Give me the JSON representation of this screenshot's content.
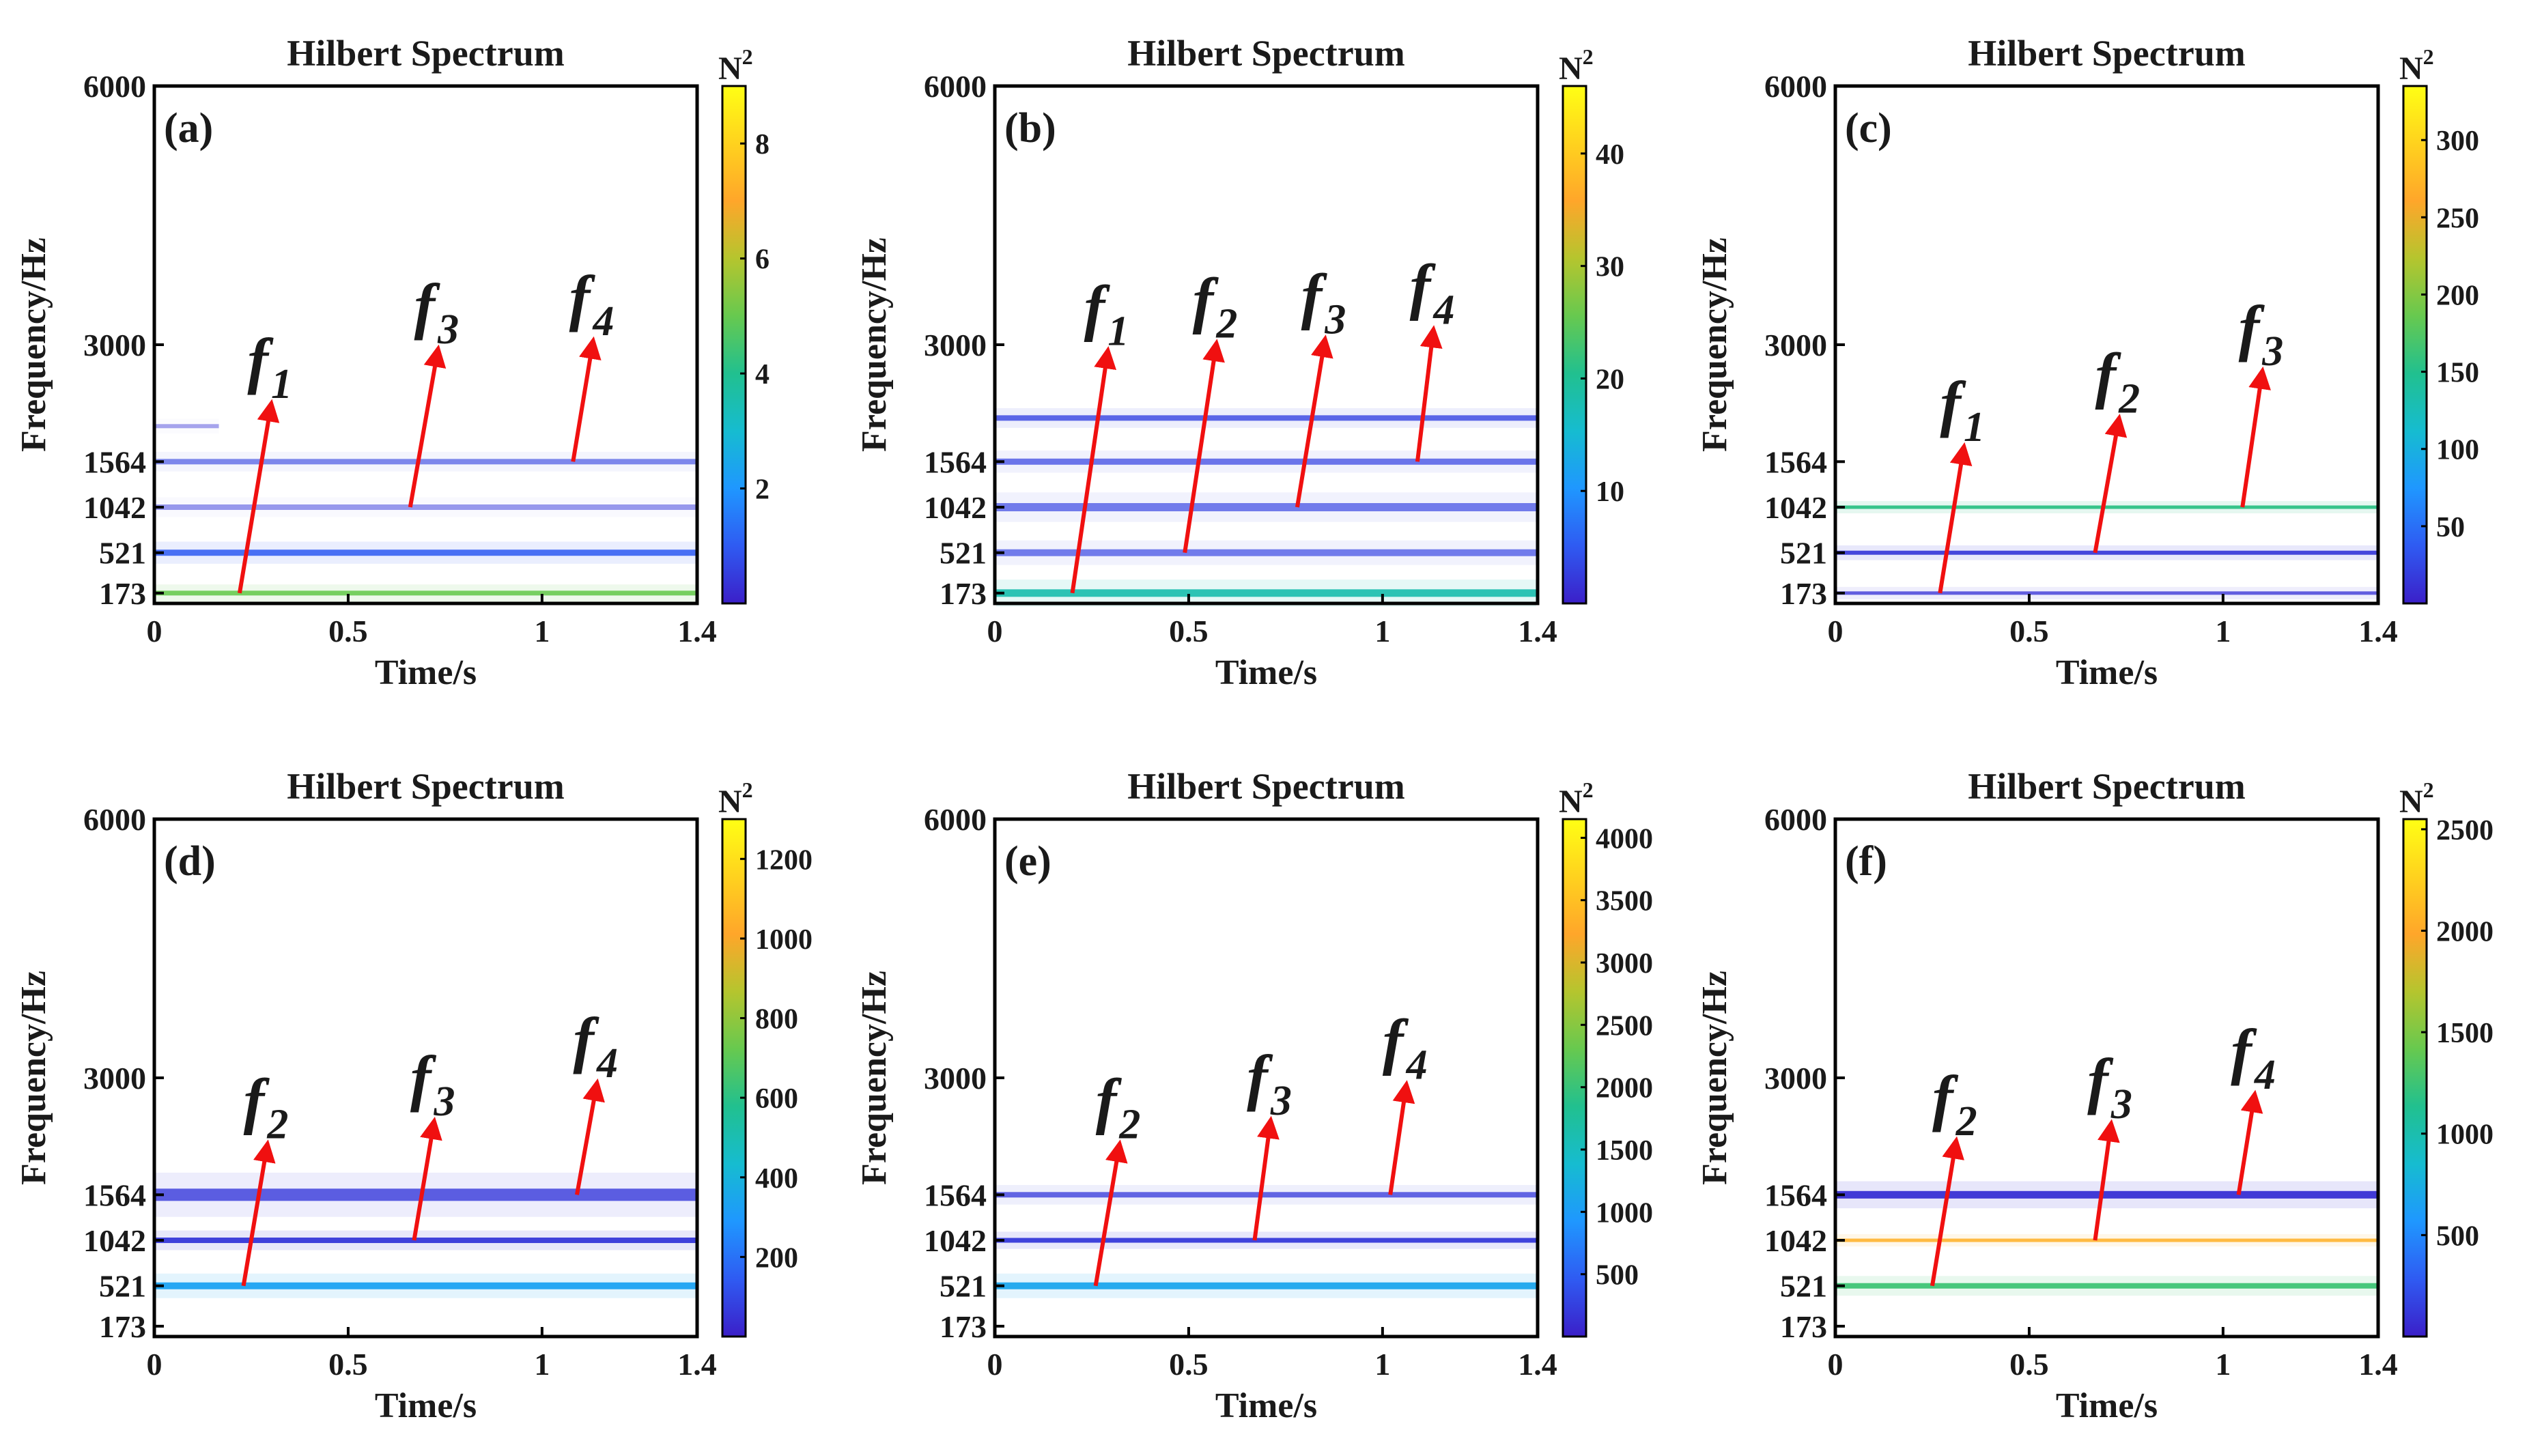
{
  "figure": {
    "colorbar_label": "N",
    "colorbar_label_sup": "2",
    "colormap": [
      "#3b1fc8",
      "#2f5bf2",
      "#1f97ff",
      "#16bcd0",
      "#21c08f",
      "#67c94f",
      "#b5c52e",
      "#ffa62a",
      "#ffd21e",
      "#ffff14"
    ]
  },
  "chart_data": [
    {
      "type": "heatmap",
      "panel_label": "(a)",
      "title": "Hilbert Spectrum",
      "xlabel": "Time/s",
      "ylabel": "Frequency/Hz",
      "xlim": [
        0,
        1.4
      ],
      "xticks": [
        0,
        0.5,
        1,
        1.4
      ],
      "xtick_labels": [
        "0",
        "0.5",
        "1",
        "1.4"
      ],
      "yticks": [
        173,
        521,
        1042,
        1564,
        3000,
        6000
      ],
      "ytick_labels": [
        "173",
        "521",
        "1042",
        "1564",
        "3000",
        "6000"
      ],
      "colorbar": {
        "ticks": [
          2,
          4,
          6,
          8
        ],
        "labels": [
          "2",
          "4",
          "6",
          "8"
        ],
        "range": [
          0,
          9
        ]
      },
      "bands": [
        {
          "freq": 173,
          "value": 5,
          "intensity": 0.9,
          "width": 7
        },
        {
          "freq": 521,
          "value": 1,
          "intensity": 0.85,
          "width": 9
        },
        {
          "freq": 1042,
          "value": 0.4,
          "intensity": 0.25,
          "width": 8
        },
        {
          "freq": 1564,
          "value": 0.6,
          "intensity": 0.45,
          "width": 8
        },
        {
          "freq": 2000,
          "value": 0.3,
          "intensity": 0.15,
          "width": 6,
          "x_end": 0.17
        }
      ],
      "annotations": [
        {
          "symbol": "f",
          "subscript": "1",
          "from": [
            0.22,
            173
          ],
          "to": [
            0.3,
            2230
          ]
        },
        {
          "symbol": "f",
          "subscript": "3",
          "from": [
            0.66,
            1042
          ],
          "to": [
            0.73,
            2900
          ]
        },
        {
          "symbol": "f",
          "subscript": "4",
          "from": [
            1.08,
            1564
          ],
          "to": [
            1.13,
            3000
          ]
        }
      ]
    },
    {
      "type": "heatmap",
      "panel_label": "(b)",
      "title": "Hilbert Spectrum",
      "xlabel": "Time/s",
      "ylabel": "Frequency/Hz",
      "xlim": [
        0,
        1.4
      ],
      "xticks": [
        0,
        0.5,
        1,
        1.4
      ],
      "xtick_labels": [
        "0",
        "0.5",
        "1",
        "1.4"
      ],
      "yticks": [
        173,
        521,
        1042,
        1564,
        3000,
        6000
      ],
      "ytick_labels": [
        "173",
        "521",
        "1042",
        "1564",
        "3000",
        "6000"
      ],
      "colorbar": {
        "ticks": [
          10,
          20,
          30,
          40
        ],
        "labels": [
          "10",
          "20",
          "30",
          "40"
        ],
        "range": [
          0,
          46
        ]
      },
      "bands": [
        {
          "freq": 173,
          "value": 18,
          "intensity": 0.95,
          "width": 11
        },
        {
          "freq": 521,
          "value": 3,
          "intensity": 0.55,
          "width": 10
        },
        {
          "freq": 1042,
          "value": 3,
          "intensity": 0.55,
          "width": 12
        },
        {
          "freq": 1564,
          "value": 3,
          "intensity": 0.6,
          "width": 9
        },
        {
          "freq": 2100,
          "value": 3,
          "intensity": 0.75,
          "width": 8
        }
      ],
      "annotations": [
        {
          "symbol": "f",
          "subscript": "1",
          "from": [
            0.2,
            173
          ],
          "to": [
            0.29,
            2880
          ]
        },
        {
          "symbol": "f",
          "subscript": "2",
          "from": [
            0.49,
            521
          ],
          "to": [
            0.57,
            2970
          ]
        },
        {
          "symbol": "f",
          "subscript": "3",
          "from": [
            0.78,
            1042
          ],
          "to": [
            0.85,
            3020
          ]
        },
        {
          "symbol": "f",
          "subscript": "4",
          "from": [
            1.09,
            1564
          ],
          "to": [
            1.13,
            3130
          ]
        }
      ]
    },
    {
      "type": "heatmap",
      "panel_label": "(c)",
      "title": "Hilbert Spectrum",
      "xlabel": "Time/s",
      "ylabel": "Frequency/Hz",
      "xlim": [
        0,
        1.4
      ],
      "xticks": [
        0,
        0.5,
        1,
        1.4
      ],
      "xtick_labels": [
        "0",
        "0.5",
        "1",
        "1.4"
      ],
      "yticks": [
        173,
        521,
        1042,
        1564,
        3000,
        6000
      ],
      "ytick_labels": [
        "173",
        "521",
        "1042",
        "1564",
        "3000",
        "6000"
      ],
      "colorbar": {
        "ticks": [
          50,
          100,
          150,
          200,
          250,
          300
        ],
        "labels": [
          "50",
          "100",
          "150",
          "200",
          "250",
          "300"
        ],
        "range": [
          0,
          335
        ]
      },
      "bands": [
        {
          "freq": 173,
          "value": 12,
          "intensity": 0.7,
          "width": 5
        },
        {
          "freq": 521,
          "value": 15,
          "intensity": 0.95,
          "width": 6
        },
        {
          "freq": 1042,
          "value": 155,
          "intensity": 1,
          "width": 5
        }
      ],
      "annotations": [
        {
          "symbol": "f",
          "subscript": "1",
          "from": [
            0.27,
            173
          ],
          "to": [
            0.33,
            1700
          ]
        },
        {
          "symbol": "f",
          "subscript": "2",
          "from": [
            0.67,
            521
          ],
          "to": [
            0.73,
            2050
          ]
        },
        {
          "symbol": "f",
          "subscript": "3",
          "from": [
            1.05,
            1042
          ],
          "to": [
            1.1,
            2630
          ]
        }
      ]
    },
    {
      "type": "heatmap",
      "panel_label": "(d)",
      "title": "Hilbert Spectrum",
      "xlabel": "Time/s",
      "ylabel": "Frequency/Hz",
      "xlim": [
        0,
        1.4
      ],
      "xticks": [
        0,
        0.5,
        1,
        1.4
      ],
      "xtick_labels": [
        "0",
        "0.5",
        "1",
        "1.4"
      ],
      "yticks": [
        173,
        521,
        1042,
        1564,
        3000,
        6000
      ],
      "ytick_labels": [
        "173",
        "521",
        "1042",
        "1564",
        "3000",
        "6000"
      ],
      "colorbar": {
        "ticks": [
          200,
          400,
          600,
          800,
          1000,
          1200
        ],
        "labels": [
          "200",
          "400",
          "600",
          "800",
          "1000",
          "1200"
        ],
        "range": [
          0,
          1300
        ]
      },
      "bands": [
        {
          "freq": 521,
          "value": 330,
          "intensity": 1,
          "width": 10
        },
        {
          "freq": 1042,
          "value": 60,
          "intensity": 1,
          "width": 8
        },
        {
          "freq": 1564,
          "value": 60,
          "intensity": 0.75,
          "width": 18
        }
      ],
      "annotations": [
        {
          "symbol": "f",
          "subscript": "2",
          "from": [
            0.23,
            521
          ],
          "to": [
            0.29,
            2140
          ]
        },
        {
          "symbol": "f",
          "subscript": "3",
          "from": [
            0.67,
            1042
          ],
          "to": [
            0.72,
            2420
          ]
        },
        {
          "symbol": "f",
          "subscript": "4",
          "from": [
            1.09,
            1564
          ],
          "to": [
            1.14,
            2890
          ]
        }
      ]
    },
    {
      "type": "heatmap",
      "panel_label": "(e)",
      "title": "Hilbert Spectrum",
      "xlabel": "Time/s",
      "ylabel": "Frequency/Hz",
      "xlim": [
        0,
        1.4
      ],
      "xticks": [
        0,
        0.5,
        1,
        1.4
      ],
      "xtick_labels": [
        "0",
        "0.5",
        "1",
        "1.4"
      ],
      "yticks": [
        173,
        521,
        1042,
        1564,
        3000,
        6000
      ],
      "ytick_labels": [
        "173",
        "521",
        "1042",
        "1564",
        "3000",
        "6000"
      ],
      "colorbar": {
        "ticks": [
          500,
          1000,
          1500,
          2000,
          2500,
          3000,
          3500,
          4000
        ],
        "labels": [
          "500",
          "1000",
          "1500",
          "2000",
          "2500",
          "3000",
          "3500",
          "4000"
        ],
        "range": [
          0,
          4150
        ]
      },
      "bands": [
        {
          "freq": 521,
          "value": 1100,
          "intensity": 1,
          "width": 10
        },
        {
          "freq": 1042,
          "value": 200,
          "intensity": 1,
          "width": 7
        },
        {
          "freq": 1564,
          "value": 200,
          "intensity": 0.7,
          "width": 8
        }
      ],
      "annotations": [
        {
          "symbol": "f",
          "subscript": "2",
          "from": [
            0.26,
            521
          ],
          "to": [
            0.32,
            2140
          ]
        },
        {
          "symbol": "f",
          "subscript": "3",
          "from": [
            0.67,
            1042
          ],
          "to": [
            0.71,
            2430
          ]
        },
        {
          "symbol": "f",
          "subscript": "4",
          "from": [
            1.02,
            1564
          ],
          "to": [
            1.06,
            2870
          ]
        }
      ]
    },
    {
      "type": "heatmap",
      "panel_label": "(f)",
      "title": "Hilbert Spectrum",
      "xlabel": "Time/s",
      "ylabel": "Frequency/Hz",
      "xlim": [
        0,
        1.4
      ],
      "xticks": [
        0,
        0.5,
        1,
        1.4
      ],
      "xtick_labels": [
        "0",
        "0.5",
        "1",
        "1.4"
      ],
      "yticks": [
        173,
        521,
        1042,
        1564,
        3000,
        6000
      ],
      "ytick_labels": [
        "173",
        "521",
        "1042",
        "1564",
        "3000",
        "6000"
      ],
      "colorbar": {
        "ticks": [
          500,
          1000,
          1500,
          2000,
          2500
        ],
        "labels": [
          "500",
          "1000",
          "1500",
          "2000",
          "2500"
        ],
        "range": [
          0,
          2550
        ]
      },
      "bands": [
        {
          "freq": 521,
          "value": 1250,
          "intensity": 1,
          "width": 8
        },
        {
          "freq": 1042,
          "value": 2050,
          "intensity": 0.85,
          "width": 5
        },
        {
          "freq": 1564,
          "value": 80,
          "intensity": 1,
          "width": 11
        }
      ],
      "annotations": [
        {
          "symbol": "f",
          "subscript": "2",
          "from": [
            0.25,
            521
          ],
          "to": [
            0.31,
            2180
          ]
        },
        {
          "symbol": "f",
          "subscript": "3",
          "from": [
            0.67,
            1042
          ],
          "to": [
            0.71,
            2390
          ]
        },
        {
          "symbol": "f",
          "subscript": "4",
          "from": [
            1.04,
            1564
          ],
          "to": [
            1.08,
            2750
          ]
        }
      ]
    }
  ]
}
